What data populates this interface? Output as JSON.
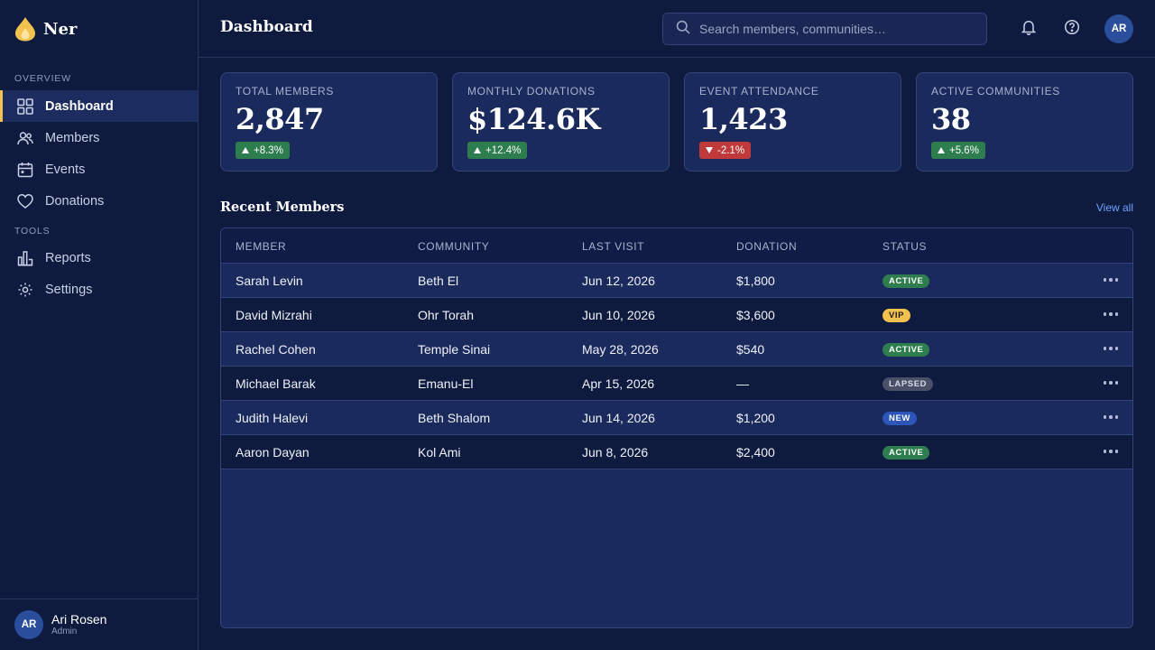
{
  "brand": {
    "name": "Ner"
  },
  "sidebar": {
    "sections": [
      "OVERVIEW",
      "TOOLS"
    ],
    "items": [
      {
        "label": "Dashboard",
        "icon": "grid-icon",
        "active": true
      },
      {
        "label": "Members",
        "icon": "users-icon"
      },
      {
        "label": "Events",
        "icon": "calendar-icon"
      },
      {
        "label": "Donations",
        "icon": "heart-icon"
      },
      {
        "label": "Reports",
        "icon": "bar-chart-icon"
      },
      {
        "label": "Settings",
        "icon": "gear-icon"
      }
    ],
    "user": {
      "initials": "AR",
      "name": "Ari Rosen",
      "role": "Admin"
    }
  },
  "header": {
    "title": "Dashboard",
    "search_placeholder": "Search members, communities…",
    "avatar_initials": "AR"
  },
  "stats": [
    {
      "label": "TOTAL MEMBERS",
      "value": "2,847",
      "delta": "+8.3%",
      "direction": "up"
    },
    {
      "label": "MONTHLY DONATIONS",
      "value": "$124.6K",
      "delta": "+12.4%",
      "direction": "up"
    },
    {
      "label": "EVENT ATTENDANCE",
      "value": "1,423",
      "delta": "-2.1%",
      "direction": "down"
    },
    {
      "label": "ACTIVE COMMUNITIES",
      "value": "38",
      "delta": "+5.6%",
      "direction": "up"
    }
  ],
  "recent": {
    "title": "Recent Members",
    "view_all": "View all",
    "columns": [
      "MEMBER",
      "COMMUNITY",
      "LAST VISIT",
      "DONATION",
      "STATUS"
    ],
    "rows": [
      {
        "member": "Sarah Levin",
        "community": "Beth El",
        "last_visit": "Jun 12, 2026",
        "donation": "$1,800",
        "status": "ACTIVE",
        "status_type": "active"
      },
      {
        "member": "David Mizrahi",
        "community": "Ohr Torah",
        "last_visit": "Jun 10, 2026",
        "donation": "$3,600",
        "status": "VIP",
        "status_type": "vip"
      },
      {
        "member": "Rachel Cohen",
        "community": "Temple Sinai",
        "last_visit": "May 28, 2026",
        "donation": "$540",
        "status": "ACTIVE",
        "status_type": "active"
      },
      {
        "member": "Michael Barak",
        "community": "Emanu-El",
        "last_visit": "Apr 15, 2026",
        "donation": "—",
        "status": "LAPSED",
        "status_type": "lapsed"
      },
      {
        "member": "Judith Halevi",
        "community": "Beth Shalom",
        "last_visit": "Jun 14, 2026",
        "donation": "$1,200",
        "status": "NEW",
        "status_type": "new"
      },
      {
        "member": "Aaron Dayan",
        "community": "Kol Ami",
        "last_visit": "Jun 8, 2026",
        "donation": "$2,400",
        "status": "ACTIVE",
        "status_type": "active"
      }
    ]
  },
  "colors": {
    "background": "#0f1b3e",
    "card": "#1b2a5c",
    "accent_gold": "#f2c14e",
    "positive": "#2e7d4f",
    "negative": "#c0393b",
    "link": "#6fa1ff"
  }
}
